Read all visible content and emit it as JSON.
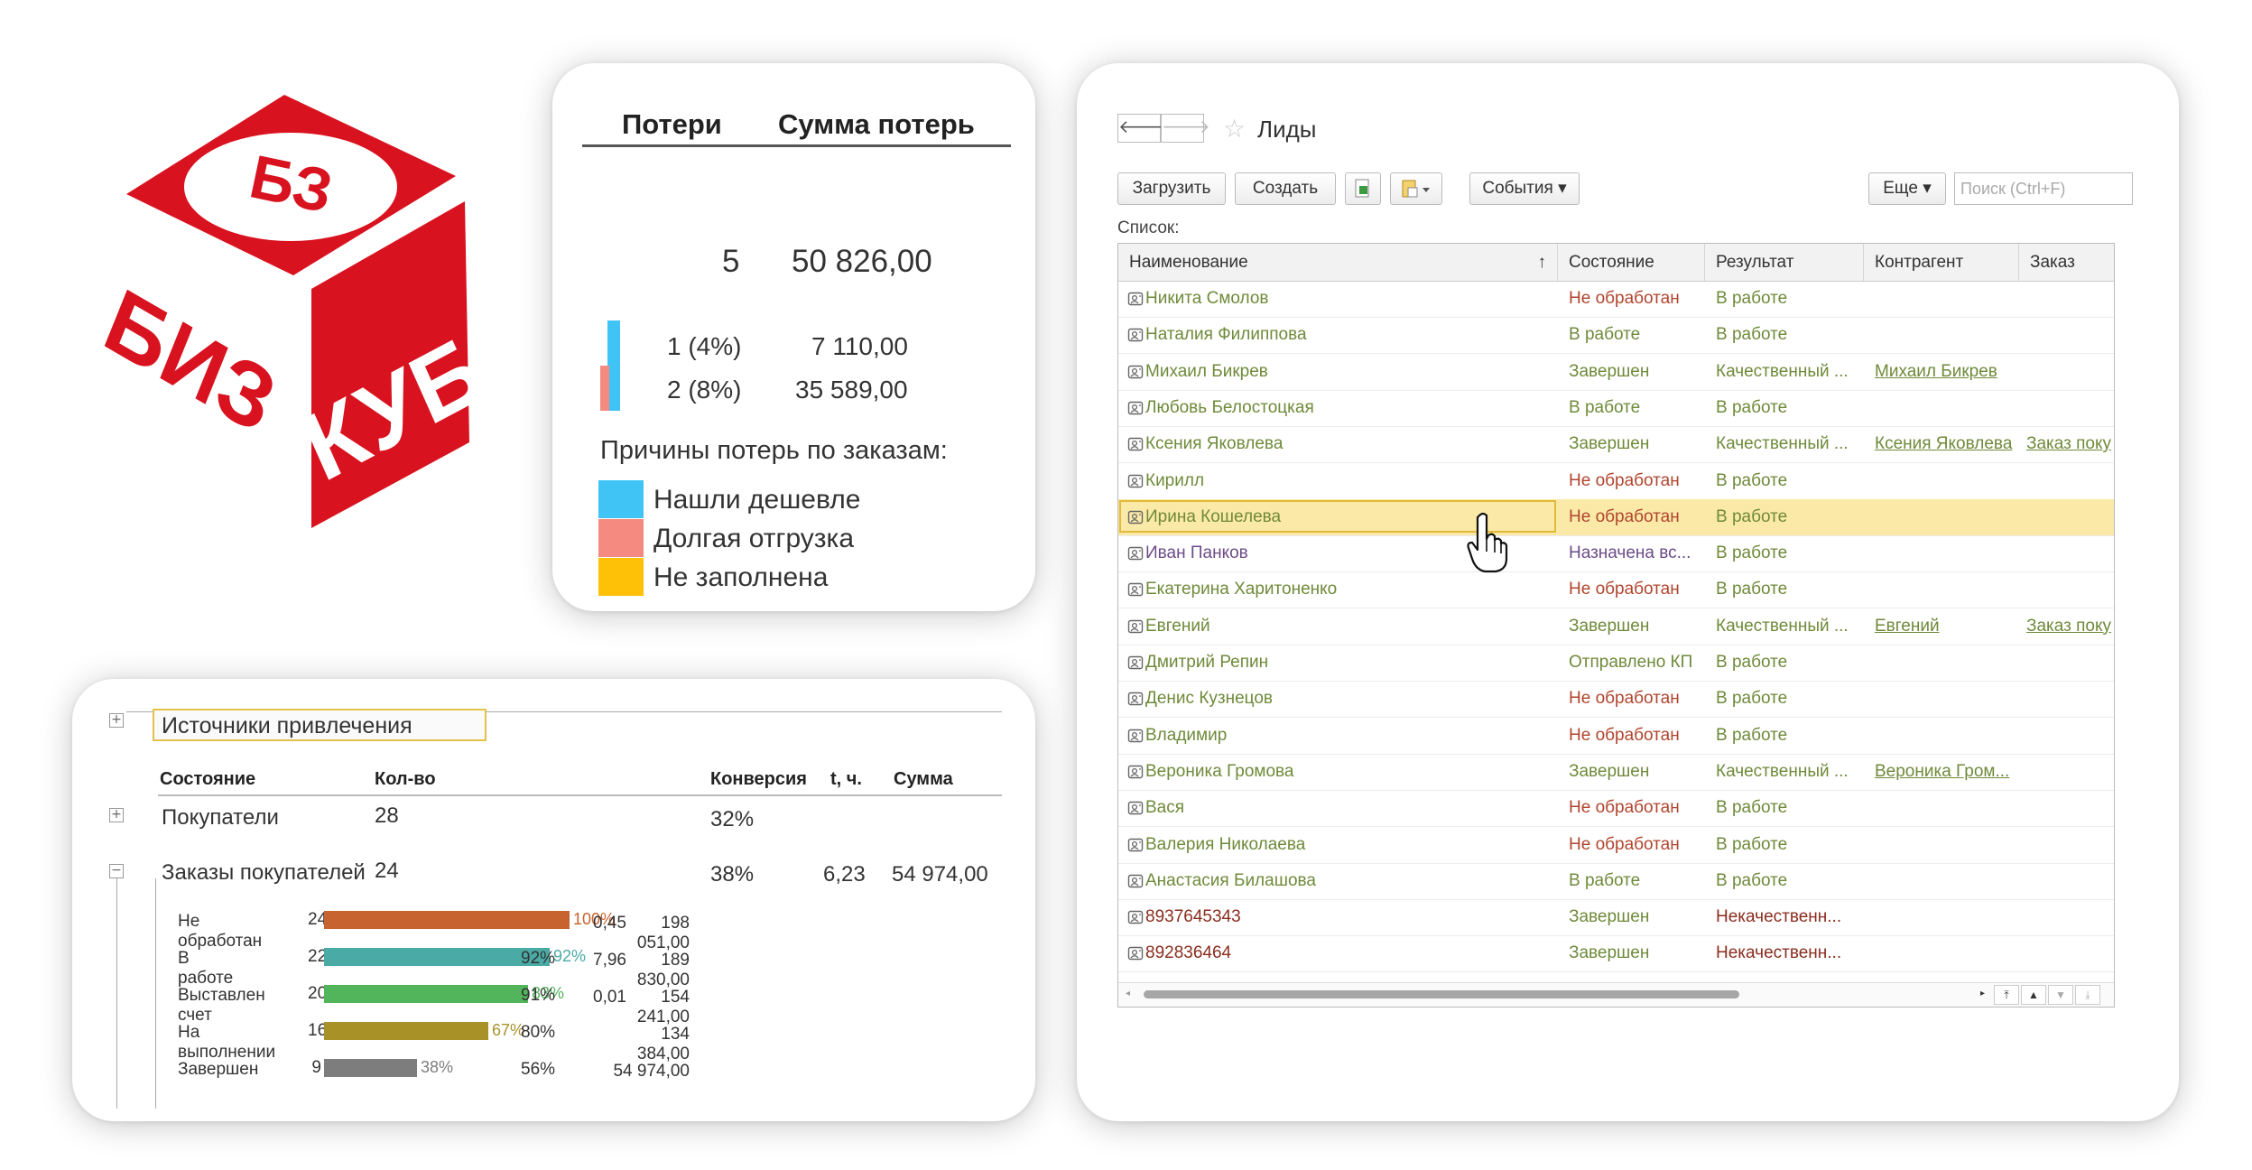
{
  "logo": {
    "top_text": "БЗ",
    "left_text": "БИЗ",
    "right_text": "КУБ",
    "color": "#d9121f"
  },
  "losses": {
    "col_losses": "Потери",
    "col_sum": "Сумма потерь",
    "total_count": "5",
    "total_sum": "50 826,00",
    "rows": [
      {
        "label": "1 (4%)",
        "sum": "7 110,00",
        "color": "#40c4f6"
      },
      {
        "label": "2 (8%)",
        "sum": "35 589,00",
        "color": "#f58a80"
      }
    ],
    "legend_title": "Причины потерь по заказам:",
    "legend": [
      {
        "label": "Нашли дешевле",
        "color": "#40c4f6"
      },
      {
        "label": "Долгая отгрузка",
        "color": "#f58a80"
      },
      {
        "label": "Не заполнена",
        "color": "#ffc107"
      }
    ]
  },
  "sources": {
    "title": "Источники привлечения",
    "headers": {
      "state": "Состояние",
      "count": "Кол-во",
      "conv": "Конверсия",
      "t": "t, ч.",
      "sum": "Сумма"
    },
    "groups": [
      {
        "label": "Покупатели",
        "count": "28",
        "conv": "32%",
        "t": "",
        "sum": ""
      },
      {
        "label": "Заказы покупателей",
        "count": "24",
        "conv": "38%",
        "t": "6,23",
        "sum": "54 974,00"
      }
    ],
    "rows": [
      {
        "label": "Не обработан",
        "count": "24",
        "pct": "100%",
        "frac": 1.0,
        "color": "#c7632f",
        "conv": "",
        "t": "0,45",
        "sum": "198 051,00"
      },
      {
        "label": "В работе",
        "count": "22",
        "pct": "92%",
        "frac": 0.92,
        "color": "#4aaba6",
        "conv": "92%",
        "t": "7,96",
        "sum": "189 830,00"
      },
      {
        "label": "Выставлен счет",
        "count": "20",
        "pct": "83%",
        "frac": 0.83,
        "color": "#52b45b",
        "conv": "91%",
        "t": "0,01",
        "sum": "154 241,00"
      },
      {
        "label": "На выполнении",
        "count": "16",
        "pct": "67%",
        "frac": 0.67,
        "color": "#a89228",
        "conv": "80%",
        "t": "",
        "sum": "134 384,00"
      },
      {
        "label": "Завершен",
        "count": "9",
        "pct": "38%",
        "frac": 0.38,
        "color": "#7d7d7d",
        "conv": "56%",
        "t": "",
        "sum": "54 974,00"
      }
    ]
  },
  "leads": {
    "title": "Лиды",
    "toolbar": {
      "load": "Загрузить",
      "create": "Создать",
      "events": "События",
      "more": "Еще"
    },
    "search_placeholder": "Поиск (Ctrl+F)",
    "list_label": "Список:",
    "columns": {
      "name": "Наименование",
      "state": "Состояние",
      "result": "Результат",
      "contractor": "Контрагент",
      "order": "Заказ"
    },
    "rows": [
      {
        "name": "Никита Смолов",
        "state": "Не обработан",
        "result": "В работе",
        "contractor": "",
        "order": ""
      },
      {
        "name": "Наталия Филиппова",
        "state": "В работе",
        "result": "В работе",
        "contractor": "",
        "order": ""
      },
      {
        "name": "Михаил Бикрев",
        "state": "Завершен",
        "result": "Качественный ...",
        "contractor": "Михаил Бикрев",
        "order": ""
      },
      {
        "name": "Любовь Белостоцкая",
        "state": "В работе",
        "result": "В работе",
        "contractor": "",
        "order": ""
      },
      {
        "name": "Ксения Яковлева",
        "state": "Завершен",
        "result": "Качественный ...",
        "contractor": "Ксения Яковлева",
        "order": "Заказ поку"
      },
      {
        "name": "Кирилл",
        "state": "Не обработан",
        "result": "В работе",
        "contractor": "",
        "order": ""
      },
      {
        "name": "Ирина Кошелева",
        "state": "Не обработан",
        "result": "В работе",
        "contractor": "",
        "order": ""
      },
      {
        "name": "Иван Панков",
        "state": "Назначена вс...",
        "result": "В работе",
        "contractor": "",
        "order": ""
      },
      {
        "name": "Екатерина Харитоненко",
        "state": "Не обработан",
        "result": "В работе",
        "contractor": "",
        "order": ""
      },
      {
        "name": "Евгений",
        "state": "Завершен",
        "result": "Качественный ...",
        "contractor": "Евгений",
        "order": "Заказ поку"
      },
      {
        "name": "Дмитрий Репин",
        "state": "Отправлено КП",
        "result": "В работе",
        "contractor": "",
        "order": ""
      },
      {
        "name": "Денис Кузнецов",
        "state": "Не обработан",
        "result": "В работе",
        "contractor": "",
        "order": ""
      },
      {
        "name": "Владимир",
        "state": "Не обработан",
        "result": "В работе",
        "contractor": "",
        "order": ""
      },
      {
        "name": "Вероника Громова",
        "state": "Завершен",
        "result": "Качественный ...",
        "contractor": "Вероника Гром...",
        "order": ""
      },
      {
        "name": "Вася",
        "state": "Не обработан",
        "result": "В работе",
        "contractor": "",
        "order": ""
      },
      {
        "name": "Валерия Николаева",
        "state": "Не обработан",
        "result": "В работе",
        "contractor": "",
        "order": ""
      },
      {
        "name": "Анастасия Билашова",
        "state": "В работе",
        "result": "В работе",
        "contractor": "",
        "order": ""
      },
      {
        "name": "8937645343",
        "state": "Завершен",
        "result": "Некачественн...",
        "contractor": "",
        "order": ""
      },
      {
        "name": "892836464",
        "state": "Завершен",
        "result": "Некачественн...",
        "contractor": "",
        "order": ""
      }
    ],
    "selected_row": 6,
    "colors": {
      "green": "#6f8a3a",
      "red": "#b0452e",
      "purple": "#6b4c88",
      "darkred": "#8a2d1e"
    }
  }
}
